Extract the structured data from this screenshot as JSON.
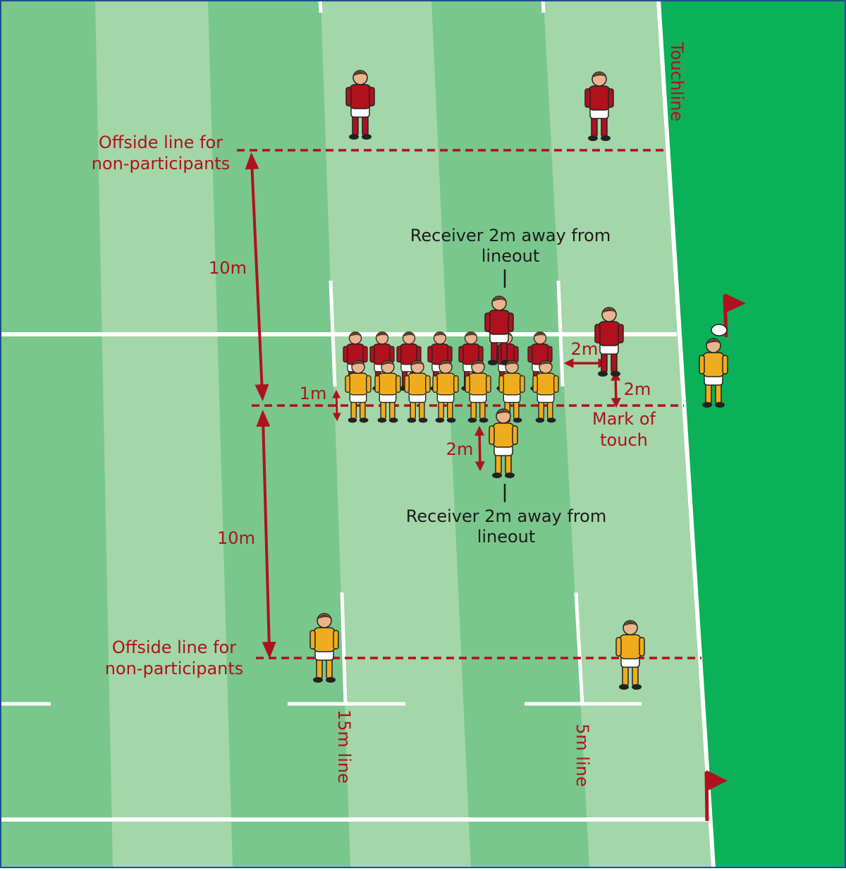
{
  "labels": {
    "touchline": "Touchline",
    "offside_top_1": "Offside line for",
    "offside_top_2": "non-participants",
    "offside_bottom_1": "Offside line for",
    "offside_bottom_2": "non-participants",
    "ten_m_top": "10m",
    "ten_m_bottom": "10m",
    "one_m": "1m",
    "two_m_jumper": "2m",
    "two_m_hooker": "2m",
    "two_m_receiver": "2m",
    "receiver_top_1": "Receiver 2m away from",
    "receiver_top_2": "lineout",
    "receiver_bottom_1": "Receiver 2m away from",
    "receiver_bottom_2": "lineout",
    "mark_1": "Mark of",
    "mark_2": "touch",
    "fifteen_m_line": "15m line",
    "five_m_line": "5m line"
  },
  "colors": {
    "stripe_dark": "#79c78c",
    "stripe_light": "#a3d6a8",
    "in_goal": "#0bb159",
    "line_white": "#ffffff",
    "annotation_red": "#b0111d",
    "red_team": "#b0111d",
    "gold_team": "#efac1e",
    "frame": "#1f4e8c"
  },
  "icons": [
    "rugby-player-red",
    "rugby-player-gold",
    "corner-flag-icon",
    "rugby-ball-icon"
  ]
}
